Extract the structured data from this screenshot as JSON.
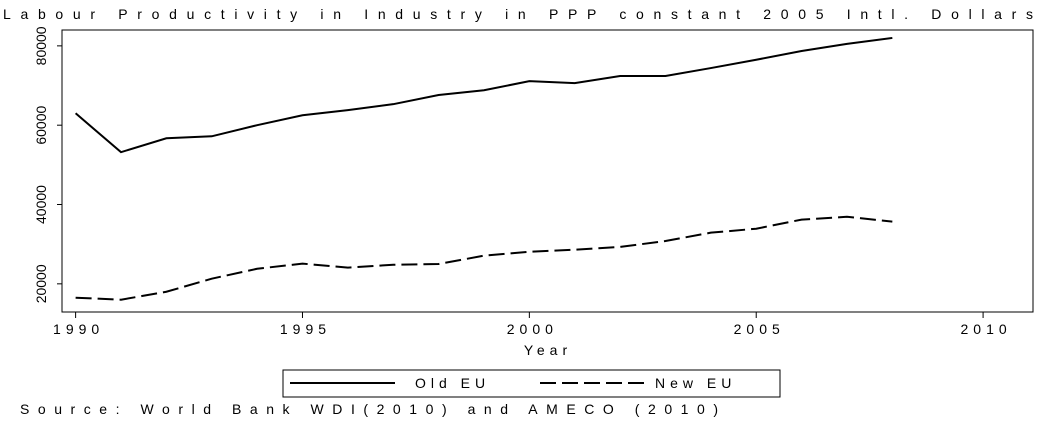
{
  "chart_data": {
    "type": "line",
    "title": "Labour Productivity in Industry in PPP constant 2005 Intl. Dollars",
    "x_label": "Year",
    "source": "Source: World Bank WDI(2010) and AMECO (2010)",
    "x": [
      1990,
      1991,
      1992,
      1993,
      1994,
      1995,
      1996,
      1997,
      1998,
      1999,
      2000,
      2001,
      2002,
      2003,
      2004,
      2005,
      2006,
      2007,
      2008
    ],
    "series": [
      {
        "name": "Old EU",
        "color": "#000000",
        "dash": "solid",
        "values": [
          63000,
          53200,
          56700,
          57200,
          60000,
          62500,
          63800,
          65300,
          67600,
          68800,
          71100,
          70600,
          72400,
          72400,
          74400,
          76500,
          78700,
          80500,
          82000
        ]
      },
      {
        "name": "New EU",
        "color": "#000000",
        "dash": "dashed",
        "values": [
          16500,
          16000,
          18000,
          21300,
          23800,
          25100,
          24100,
          24800,
          25000,
          27100,
          28100,
          28600,
          29300,
          30800,
          32900,
          33900,
          36200,
          36900,
          35700
        ]
      }
    ],
    "xlim": [
      1989.7,
      2011.1
    ],
    "xticks": [
      1990,
      1995,
      2000,
      2005,
      2010
    ],
    "ylim": [
      12900,
      84000
    ],
    "yticks": [
      20000,
      40000,
      60000,
      80000
    ],
    "grid": false,
    "legend": "bottom"
  }
}
